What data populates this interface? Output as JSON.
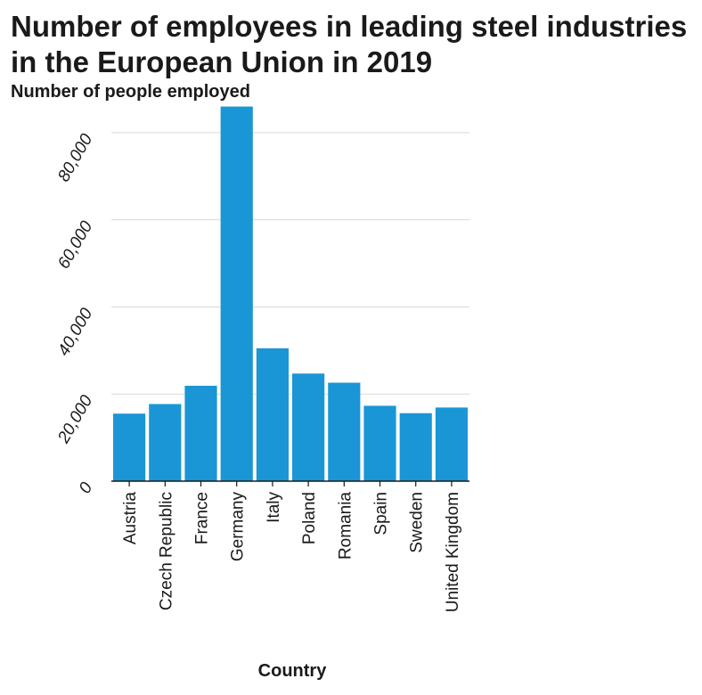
{
  "chart_data": {
    "type": "bar",
    "title": "Number of employees in leading steel industries in the European Union in 2019",
    "xlabel": "Country",
    "ylabel": "Number of people employed",
    "categories": [
      "Austria",
      "Czech Republic",
      "France",
      "Germany",
      "Italy",
      "Poland",
      "Romania",
      "Spain",
      "Sweden",
      "United Kingdom"
    ],
    "values": [
      15500,
      17700,
      21900,
      86000,
      30500,
      24700,
      22600,
      17300,
      15600,
      16900
    ],
    "ylim": [
      0,
      90000
    ],
    "yticks": [
      0,
      20000,
      40000,
      60000,
      80000
    ],
    "ytick_labels": [
      "0",
      "20,000",
      "40,000",
      "60,000",
      "80,000"
    ],
    "grid": true,
    "bar_color": "#1a96d6"
  }
}
